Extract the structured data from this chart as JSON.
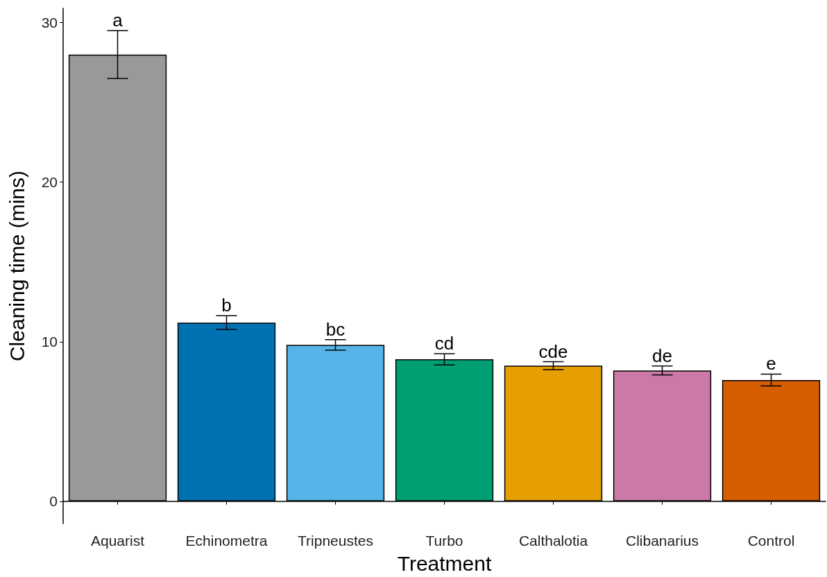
{
  "chart_data": {
    "type": "bar",
    "xlabel": "Treatment",
    "ylabel": "Cleaning time (mins)",
    "categories": [
      "Aquarist",
      "Echinometra",
      "Tripneustes",
      "Turbo",
      "Calthalotia",
      "Clibanarius",
      "Control"
    ],
    "values": [
      28.0,
      11.2,
      9.8,
      8.9,
      8.5,
      8.2,
      7.6
    ],
    "colors": [
      "#999999",
      "#0072b2",
      "#56b4e9",
      "#009e73",
      "#e69f00",
      "#cc79a7",
      "#d55e00"
    ],
    "errors": [
      1.5,
      0.43,
      0.33,
      0.35,
      0.25,
      0.28,
      0.37
    ],
    "ylim": [
      -1.4,
      30.9
    ],
    "yticks": [
      0,
      10,
      20,
      30
    ],
    "grid": false,
    "annotations": [
      {
        "text": "a",
        "x": "Aquarist",
        "y": 29.5
      },
      {
        "text": "b",
        "x": "Echinometra",
        "y": 11.63
      },
      {
        "text": "bc",
        "x": "Tripneustes",
        "y": 10.13
      },
      {
        "text": "cd",
        "x": "Turbo",
        "y": 9.25
      },
      {
        "text": "cde",
        "x": "Calthalotia",
        "y": 8.75
      },
      {
        "text": "de",
        "x": "Clibanarius",
        "y": 8.48
      },
      {
        "text": "e",
        "x": "Control",
        "y": 7.97
      }
    ]
  }
}
